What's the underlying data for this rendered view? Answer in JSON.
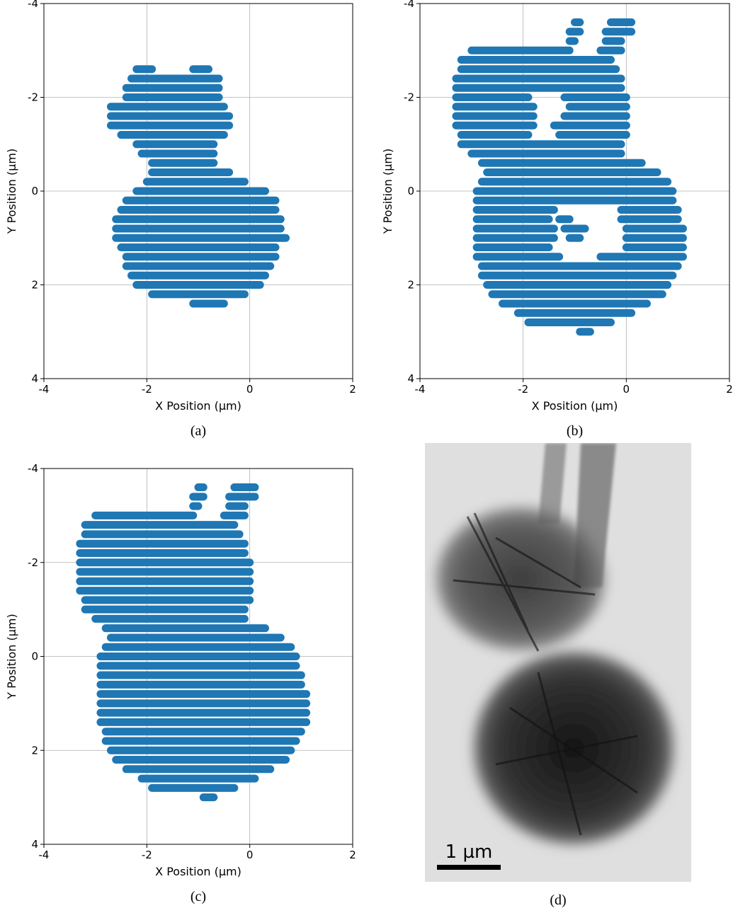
{
  "chart_data": [
    {
      "type": "scatter",
      "caption": "(a)",
      "xlabel": "X Position (µm)",
      "ylabel": "Y Position (µm)",
      "xlim": [
        -4,
        2
      ],
      "ylim": [
        4,
        -4
      ],
      "xticks": [
        -4,
        -2,
        0,
        2
      ],
      "yticks": [
        -4,
        -2,
        0,
        2,
        4
      ],
      "grid": true,
      "color": "#1f77b4",
      "rows": [
        {
          "y": -2.6,
          "spans": [
            [
              -2.2,
              -1.9
            ],
            [
              -1.1,
              -0.8
            ]
          ]
        },
        {
          "y": -2.4,
          "spans": [
            [
              -2.3,
              -0.6
            ]
          ]
        },
        {
          "y": -2.2,
          "spans": [
            [
              -2.4,
              -0.6
            ]
          ]
        },
        {
          "y": -2.0,
          "spans": [
            [
              -2.4,
              -0.6
            ]
          ]
        },
        {
          "y": -1.8,
          "spans": [
            [
              -2.7,
              -0.5
            ]
          ]
        },
        {
          "y": -1.6,
          "spans": [
            [
              -2.7,
              -0.4
            ]
          ]
        },
        {
          "y": -1.4,
          "spans": [
            [
              -2.7,
              -0.4
            ]
          ]
        },
        {
          "y": -1.2,
          "spans": [
            [
              -2.5,
              -0.5
            ]
          ]
        },
        {
          "y": -1.0,
          "spans": [
            [
              -2.2,
              -0.7
            ]
          ]
        },
        {
          "y": -0.8,
          "spans": [
            [
              -2.1,
              -0.7
            ]
          ]
        },
        {
          "y": -0.6,
          "spans": [
            [
              -1.9,
              -0.7
            ]
          ]
        },
        {
          "y": -0.4,
          "spans": [
            [
              -1.9,
              -0.4
            ]
          ]
        },
        {
          "y": -0.2,
          "spans": [
            [
              -2.0,
              -0.1
            ]
          ]
        },
        {
          "y": 0.0,
          "spans": [
            [
              -2.2,
              0.3
            ]
          ]
        },
        {
          "y": 0.2,
          "spans": [
            [
              -2.4,
              0.5
            ]
          ]
        },
        {
          "y": 0.4,
          "spans": [
            [
              -2.5,
              0.5
            ]
          ]
        },
        {
          "y": 0.6,
          "spans": [
            [
              -2.6,
              0.6
            ]
          ]
        },
        {
          "y": 0.8,
          "spans": [
            [
              -2.6,
              0.6
            ]
          ]
        },
        {
          "y": 1.0,
          "spans": [
            [
              -2.6,
              0.7
            ]
          ]
        },
        {
          "y": 1.2,
          "spans": [
            [
              -2.5,
              0.5
            ]
          ]
        },
        {
          "y": 1.4,
          "spans": [
            [
              -2.4,
              0.5
            ]
          ]
        },
        {
          "y": 1.6,
          "spans": [
            [
              -2.4,
              0.4
            ]
          ]
        },
        {
          "y": 1.8,
          "spans": [
            [
              -2.3,
              0.3
            ]
          ]
        },
        {
          "y": 2.0,
          "spans": [
            [
              -2.2,
              0.2
            ]
          ]
        },
        {
          "y": 2.2,
          "spans": [
            [
              -1.9,
              -0.1
            ]
          ]
        },
        {
          "y": 2.4,
          "spans": [
            [
              -1.1,
              -0.5
            ]
          ]
        }
      ]
    },
    {
      "type": "scatter",
      "caption": "(b)",
      "xlabel": "X Position (µm)",
      "ylabel": "Y Position (µm)",
      "xlim": [
        -4,
        2
      ],
      "ylim": [
        4,
        -4
      ],
      "xticks": [
        -4,
        -2,
        0,
        2
      ],
      "yticks": [
        -4,
        -2,
        0,
        2,
        4
      ],
      "grid": true,
      "color": "#1f77b4",
      "rows": [
        {
          "y": -3.6,
          "spans": [
            [
              -1.0,
              -0.9
            ],
            [
              -0.3,
              0.1
            ]
          ]
        },
        {
          "y": -3.4,
          "spans": [
            [
              -1.1,
              -0.9
            ],
            [
              -0.4,
              0.1
            ]
          ]
        },
        {
          "y": -3.2,
          "spans": [
            [
              -1.1,
              -1.0
            ],
            [
              -0.4,
              -0.1
            ]
          ]
        },
        {
          "y": -3.0,
          "spans": [
            [
              -3.0,
              -1.1
            ],
            [
              -0.5,
              -0.1
            ]
          ]
        },
        {
          "y": -2.8,
          "spans": [
            [
              -3.2,
              -0.3
            ]
          ]
        },
        {
          "y": -2.6,
          "spans": [
            [
              -3.2,
              -0.2
            ]
          ]
        },
        {
          "y": -2.4,
          "spans": [
            [
              -3.3,
              -0.1
            ]
          ]
        },
        {
          "y": -2.2,
          "spans": [
            [
              -3.3,
              -0.1
            ]
          ]
        },
        {
          "y": -2.0,
          "spans": [
            [
              -3.3,
              -1.9
            ],
            [
              -1.2,
              0
            ]
          ]
        },
        {
          "y": -1.8,
          "spans": [
            [
              -3.3,
              -1.8
            ],
            [
              -1.1,
              0
            ]
          ]
        },
        {
          "y": -1.6,
          "spans": [
            [
              -3.3,
              -1.8
            ],
            [
              -1.2,
              0
            ]
          ]
        },
        {
          "y": -1.4,
          "spans": [
            [
              -3.3,
              -1.8
            ],
            [
              -1.4,
              0
            ]
          ]
        },
        {
          "y": -1.2,
          "spans": [
            [
              -3.2,
              -1.9
            ],
            [
              -1.3,
              0
            ]
          ]
        },
        {
          "y": -1.0,
          "spans": [
            [
              -3.2,
              -0.1
            ]
          ]
        },
        {
          "y": -0.8,
          "spans": [
            [
              -3.0,
              -0.1
            ]
          ]
        },
        {
          "y": -0.6,
          "spans": [
            [
              -2.8,
              0.3
            ]
          ]
        },
        {
          "y": -0.4,
          "spans": [
            [
              -2.7,
              0.6
            ]
          ]
        },
        {
          "y": -0.2,
          "spans": [
            [
              -2.8,
              0.8
            ]
          ]
        },
        {
          "y": 0.0,
          "spans": [
            [
              -2.9,
              0.9
            ]
          ]
        },
        {
          "y": 0.2,
          "spans": [
            [
              -2.9,
              0.9
            ]
          ]
        },
        {
          "y": 0.4,
          "spans": [
            [
              -2.9,
              -1.4
            ],
            [
              -0.1,
              1.0
            ]
          ]
        },
        {
          "y": 0.6,
          "spans": [
            [
              -2.9,
              -1.5
            ],
            [
              -1.3,
              -1.1
            ],
            [
              -0.1,
              1.0
            ]
          ]
        },
        {
          "y": 0.8,
          "spans": [
            [
              -2.9,
              -1.4
            ],
            [
              -1.2,
              -0.8
            ],
            [
              0,
              1.1
            ]
          ]
        },
        {
          "y": 1.0,
          "spans": [
            [
              -2.9,
              -1.4
            ],
            [
              -1.1,
              -0.9
            ],
            [
              0,
              1.1
            ]
          ]
        },
        {
          "y": 1.2,
          "spans": [
            [
              -2.9,
              -1.5
            ],
            [
              0,
              1.1
            ]
          ]
        },
        {
          "y": 1.4,
          "spans": [
            [
              -2.9,
              -1.3
            ],
            [
              -0.5,
              1.1
            ]
          ]
        },
        {
          "y": 1.6,
          "spans": [
            [
              -2.8,
              1.0
            ]
          ]
        },
        {
          "y": 1.8,
          "spans": [
            [
              -2.8,
              0.9
            ]
          ]
        },
        {
          "y": 2.0,
          "spans": [
            [
              -2.7,
              0.8
            ]
          ]
        },
        {
          "y": 2.2,
          "spans": [
            [
              -2.6,
              0.7
            ]
          ]
        },
        {
          "y": 2.4,
          "spans": [
            [
              -2.4,
              0.4
            ]
          ]
        },
        {
          "y": 2.6,
          "spans": [
            [
              -2.1,
              0.1
            ]
          ]
        },
        {
          "y": 2.8,
          "spans": [
            [
              -1.9,
              -0.3
            ]
          ]
        },
        {
          "y": 3.0,
          "spans": [
            [
              -0.9,
              -0.7
            ]
          ]
        }
      ]
    },
    {
      "type": "scatter",
      "caption": "(c)",
      "xlabel": "X Position (µm)",
      "ylabel": "Y Position (µm)",
      "xlim": [
        -4,
        2
      ],
      "ylim": [
        4,
        -4
      ],
      "xticks": [
        -4,
        -2,
        0,
        2
      ],
      "yticks": [
        -4,
        -2,
        0,
        2,
        4
      ],
      "grid": true,
      "color": "#1f77b4",
      "rows": [
        {
          "y": -3.6,
          "spans": [
            [
              -1.0,
              -0.9
            ],
            [
              -0.3,
              0.1
            ]
          ]
        },
        {
          "y": -3.4,
          "spans": [
            [
              -1.1,
              -0.9
            ],
            [
              -0.4,
              0.1
            ]
          ]
        },
        {
          "y": -3.2,
          "spans": [
            [
              -1.1,
              -1.0
            ],
            [
              -0.4,
              -0.1
            ]
          ]
        },
        {
          "y": -3.0,
          "spans": [
            [
              -3.0,
              -1.1
            ],
            [
              -0.5,
              -0.1
            ]
          ]
        },
        {
          "y": -2.8,
          "spans": [
            [
              -3.2,
              -0.3
            ]
          ]
        },
        {
          "y": -2.6,
          "spans": [
            [
              -3.2,
              -0.2
            ]
          ]
        },
        {
          "y": -2.4,
          "spans": [
            [
              -3.3,
              -0.1
            ]
          ]
        },
        {
          "y": -2.2,
          "spans": [
            [
              -3.3,
              -0.1
            ]
          ]
        },
        {
          "y": -2.0,
          "spans": [
            [
              -3.3,
              0
            ]
          ]
        },
        {
          "y": -1.8,
          "spans": [
            [
              -3.3,
              0
            ]
          ]
        },
        {
          "y": -1.6,
          "spans": [
            [
              -3.3,
              0
            ]
          ]
        },
        {
          "y": -1.4,
          "spans": [
            [
              -3.3,
              0
            ]
          ]
        },
        {
          "y": -1.2,
          "spans": [
            [
              -3.2,
              0
            ]
          ]
        },
        {
          "y": -1.0,
          "spans": [
            [
              -3.2,
              -0.1
            ]
          ]
        },
        {
          "y": -0.8,
          "spans": [
            [
              -3.0,
              -0.1
            ]
          ]
        },
        {
          "y": -0.6,
          "spans": [
            [
              -2.8,
              0.3
            ]
          ]
        },
        {
          "y": -0.4,
          "spans": [
            [
              -2.7,
              0.6
            ]
          ]
        },
        {
          "y": -0.2,
          "spans": [
            [
              -2.8,
              0.8
            ]
          ]
        },
        {
          "y": 0.0,
          "spans": [
            [
              -2.9,
              0.9
            ]
          ]
        },
        {
          "y": 0.2,
          "spans": [
            [
              -2.9,
              0.9
            ]
          ]
        },
        {
          "y": 0.4,
          "spans": [
            [
              -2.9,
              1.0
            ]
          ]
        },
        {
          "y": 0.6,
          "spans": [
            [
              -2.9,
              1.0
            ]
          ]
        },
        {
          "y": 0.8,
          "spans": [
            [
              -2.9,
              1.1
            ]
          ]
        },
        {
          "y": 1.0,
          "spans": [
            [
              -2.9,
              1.1
            ]
          ]
        },
        {
          "y": 1.2,
          "spans": [
            [
              -2.9,
              1.1
            ]
          ]
        },
        {
          "y": 1.4,
          "spans": [
            [
              -2.9,
              1.1
            ]
          ]
        },
        {
          "y": 1.6,
          "spans": [
            [
              -2.8,
              1.0
            ]
          ]
        },
        {
          "y": 1.8,
          "spans": [
            [
              -2.8,
              0.9
            ]
          ]
        },
        {
          "y": 2.0,
          "spans": [
            [
              -2.7,
              0.8
            ]
          ]
        },
        {
          "y": 2.2,
          "spans": [
            [
              -2.6,
              0.7
            ]
          ]
        },
        {
          "y": 2.4,
          "spans": [
            [
              -2.4,
              0.4
            ]
          ]
        },
        {
          "y": 2.6,
          "spans": [
            [
              -2.1,
              0.1
            ]
          ]
        },
        {
          "y": 2.8,
          "spans": [
            [
              -1.9,
              -0.3
            ]
          ]
        },
        {
          "y": 3.0,
          "spans": [
            [
              -0.9,
              -0.7
            ]
          ]
        }
      ]
    }
  ],
  "image": {
    "caption": "(d)",
    "scale_bar": "1 µm"
  }
}
